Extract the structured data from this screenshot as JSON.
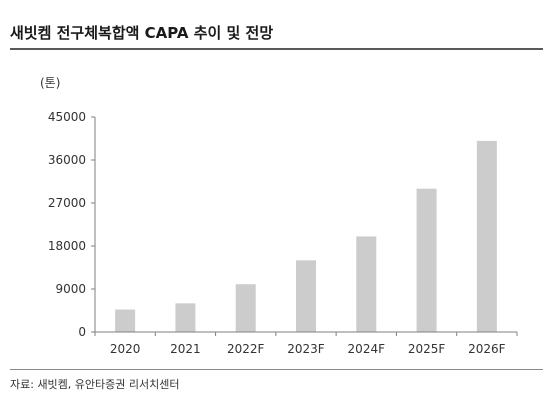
{
  "title": "새빗켐 전구체복합액 CAPA 추이 및 전망",
  "unit": "(톤)",
  "source": "자료: 새빗켐, 유안타증권 리서치센터",
  "colors": {
    "bar": "#cccccc",
    "axis": "#7f7f7f",
    "rule": "#5a5a5a"
  },
  "chart_data": {
    "type": "bar",
    "categories": [
      "2020",
      "2021",
      "2022F",
      "2023F",
      "2024F",
      "2025F",
      "2026F"
    ],
    "values": [
      4700,
      6000,
      10000,
      15000,
      20000,
      30000,
      40000
    ],
    "ylim": [
      0,
      45000
    ],
    "yticks": [
      "0",
      "9000",
      "18000",
      "27000",
      "36000",
      "45000"
    ],
    "grid": false,
    "legend": "none"
  }
}
